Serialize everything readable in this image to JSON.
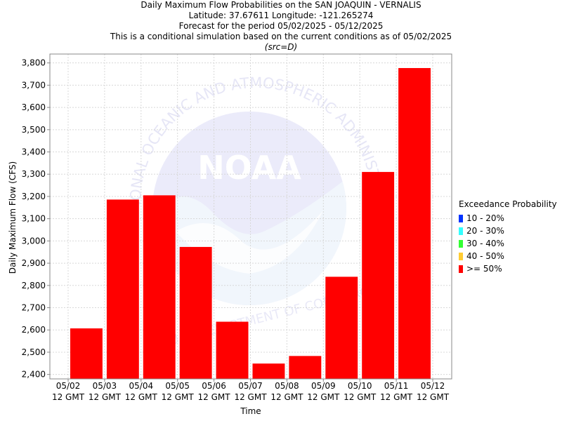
{
  "titles": {
    "line1": "Daily Maximum Flow Probabilities on the SAN JOAQUIN - VERNALIS",
    "line2": "Latitude: 37.67611 Longitude: -121.265274",
    "line3": "Forecast for the period 05/02/2025 - 05/12/2025",
    "line4": "This is a conditional simulation based on the current conditions as of 05/02/2025",
    "src": "(src=D)"
  },
  "legend": {
    "title": "Exceedance Probability",
    "items": [
      {
        "label": "10 - 20%",
        "color": "#0033ff"
      },
      {
        "label": "20 - 30%",
        "color": "#33ffff"
      },
      {
        "label": "30 - 40%",
        "color": "#33ff33"
      },
      {
        "label": "40 - 50%",
        "color": "#ffcc33"
      },
      {
        "label": ">= 50%",
        "color": "#ff0000"
      }
    ]
  },
  "watermark": {
    "logo_text": "NOAA",
    "arc_text": "NATIONAL OCEANIC AND ATMOSPHERIC ADMINISTRATION",
    "bottom_text": "U.S. DEPARTMENT OF COMMERCE"
  },
  "chart_data": {
    "type": "bar",
    "xlabel": "Time",
    "ylabel": "Daily Maximum Flow (CFS)",
    "ylim": [
      2380,
      3840
    ],
    "yticks": [
      2400,
      2500,
      2600,
      2700,
      2800,
      2900,
      3000,
      3100,
      3200,
      3300,
      3400,
      3500,
      3600,
      3700,
      3800
    ],
    "ytick_labels": [
      "2,400",
      "2,500",
      "2,600",
      "2,700",
      "2,800",
      "2,900",
      "3,000",
      "3,100",
      "3,200",
      "3,300",
      "3,400",
      "3,500",
      "3,600",
      "3,700",
      "3,800"
    ],
    "xticks": [
      {
        "date": "05/02",
        "label2": "12 GMT"
      },
      {
        "date": "05/03",
        "label2": "12 GMT"
      },
      {
        "date": "05/04",
        "label2": "12 GMT"
      },
      {
        "date": "05/05",
        "label2": "12 GMT"
      },
      {
        "date": "05/06",
        "label2": "12 GMT"
      },
      {
        "date": "05/07",
        "label2": "12 GMT"
      },
      {
        "date": "05/08",
        "label2": "12 GMT"
      },
      {
        "date": "05/09",
        "label2": "12 GMT"
      },
      {
        "date": "05/10",
        "label2": "12 GMT"
      },
      {
        "date": "05/11",
        "label2": "12 GMT"
      },
      {
        "date": "05/12",
        "label2": "12 GMT"
      }
    ],
    "series": [
      {
        "name": ">= 50%",
        "color": "#ff0000",
        "values": [
          2607,
          3186,
          3205,
          2973,
          2637,
          2449,
          2483,
          2839,
          3310,
          3777
        ]
      }
    ],
    "grid": true,
    "legend_position": "right"
  }
}
